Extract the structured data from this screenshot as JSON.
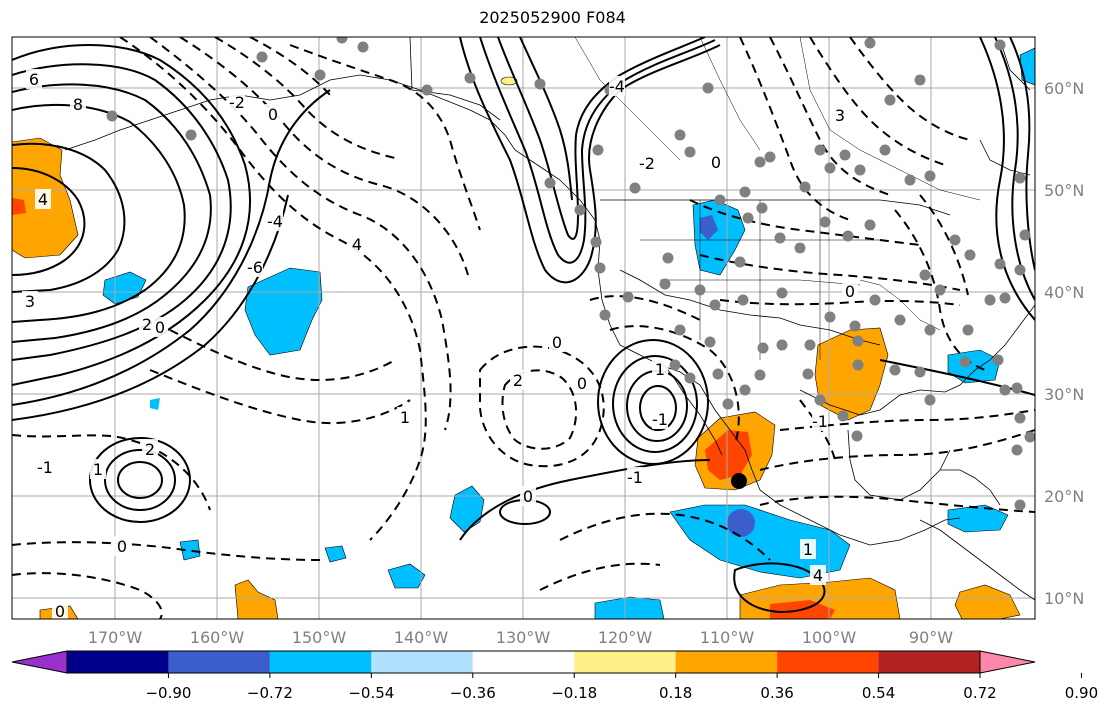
{
  "title": "2025052900 F084",
  "lon_labels": [
    "170°W",
    "160°W",
    "150°W",
    "140°W",
    "130°W",
    "120°W",
    "110°W",
    "100°W",
    "90°W"
  ],
  "lon_values": [
    -170,
    -160,
    -150,
    -140,
    -130,
    -120,
    -110,
    -100,
    -90
  ],
  "lat_labels": [
    "60°N",
    "50°N",
    "40°N",
    "30°N",
    "20°N",
    "10°N"
  ],
  "lat_values": [
    60,
    50,
    40,
    30,
    20,
    10
  ],
  "colorbar": {
    "tick_labels": [
      "−0.90",
      "−0.72",
      "−0.54",
      "−0.36",
      "−0.18",
      "0.18",
      "0.36",
      "0.54",
      "0.72",
      "0.90"
    ],
    "colors": [
      "#9932cc",
      "#00008b",
      "#3a5fcd",
      "#00bfff",
      "#b0e2ff",
      "#ffffff",
      "#fff08c",
      "#ffa500",
      "#ff4500",
      "#b22222",
      "#ff88aa"
    ]
  },
  "contour_labels": [
    "6",
    "8",
    "4",
    "3",
    "2",
    "0",
    "-2",
    "-4",
    "-6",
    "0",
    "3",
    "4",
    "-4",
    "-2",
    "0",
    "1",
    "-1",
    "0",
    "1",
    "2",
    "0",
    "-1",
    "0",
    "1",
    "0",
    "2",
    "1",
    "4",
    "-1",
    "0",
    "-1",
    "0"
  ]
}
